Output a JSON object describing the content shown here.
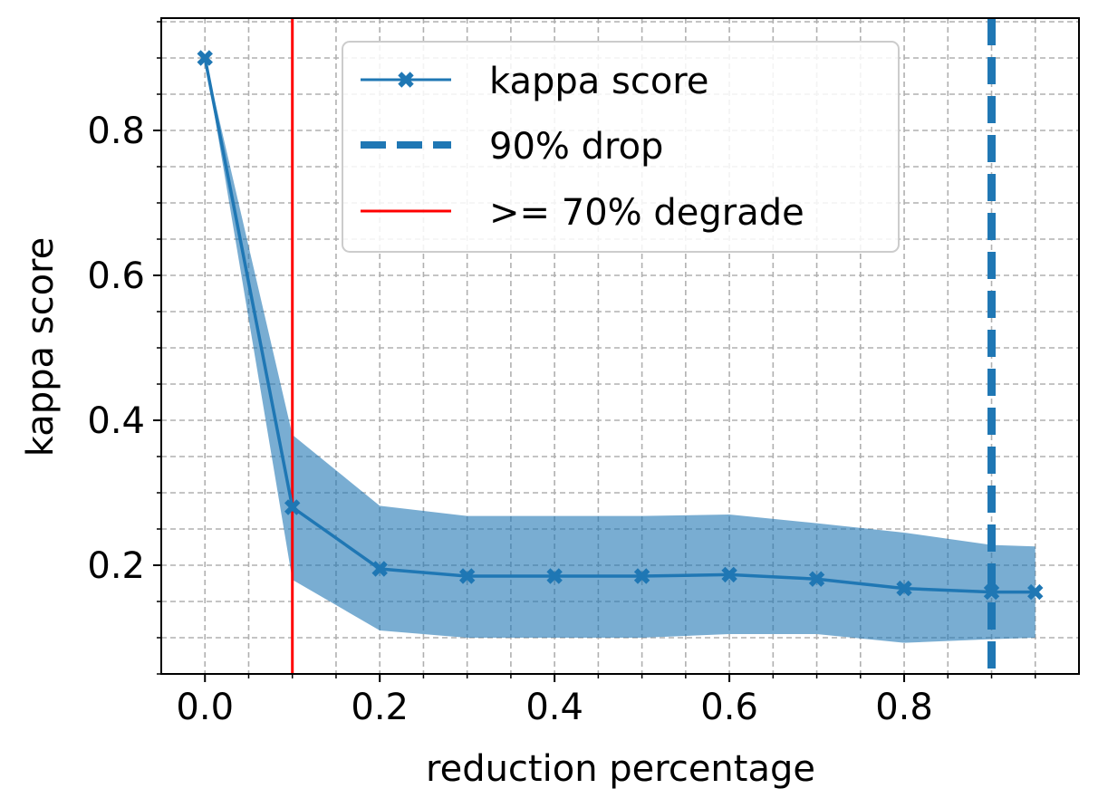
{
  "chart_data": {
    "type": "line",
    "title": "",
    "xlabel": "reduction percentage",
    "ylabel": "kappa score",
    "xlim": [
      -0.05,
      1.0
    ],
    "ylim": [
      0.05,
      0.955
    ],
    "grid": true,
    "grid_style": "dashed",
    "legend_position": "top-center",
    "x_ticks": [
      0.0,
      0.2,
      0.4,
      0.6,
      0.8
    ],
    "x_tick_labels": [
      "0.0",
      "0.2",
      "0.4",
      "0.6",
      "0.8"
    ],
    "x_minor_ticks": [
      0.05,
      0.1,
      0.15,
      0.25,
      0.3,
      0.35,
      0.45,
      0.5,
      0.55,
      0.65,
      0.7,
      0.75,
      0.85,
      0.9,
      0.95
    ],
    "y_ticks": [
      0.2,
      0.4,
      0.6,
      0.8
    ],
    "y_tick_labels": [
      "0.2",
      "0.4",
      "0.6",
      "0.8"
    ],
    "y_minor_ticks": [
      0.05,
      0.1,
      0.15,
      0.25,
      0.3,
      0.35,
      0.45,
      0.5,
      0.55,
      0.65,
      0.7,
      0.75,
      0.85,
      0.9,
      0.95
    ],
    "series": [
      {
        "name": "kappa score",
        "color": "#1f77b4",
        "marker": "X",
        "x": [
          0.0,
          0.1,
          0.2,
          0.3,
          0.4,
          0.5,
          0.6,
          0.7,
          0.8,
          0.9,
          0.95
        ],
        "y": [
          0.9,
          0.28,
          0.195,
          0.185,
          0.185,
          0.185,
          0.187,
          0.181,
          0.168,
          0.163,
          0.163
        ],
        "band_lower": [
          0.9,
          0.18,
          0.11,
          0.1,
          0.1,
          0.1,
          0.105,
          0.105,
          0.093,
          0.098,
          0.1
        ],
        "band_upper": [
          0.9,
          0.38,
          0.282,
          0.268,
          0.268,
          0.268,
          0.27,
          0.258,
          0.245,
          0.228,
          0.226
        ],
        "band_color": "#1f77b4",
        "band_opacity": 0.6
      }
    ],
    "vlines": [
      {
        "name": "90% drop",
        "x": 0.9,
        "color": "#1f77b4",
        "style": "dashed"
      },
      {
        "name": ">= 70% degrade",
        "x": 0.1,
        "color": "#ff0000",
        "style": "solid"
      }
    ],
    "legend": [
      {
        "label": "kappa score",
        "kind": "line-marker",
        "color": "#1f77b4"
      },
      {
        "label": "90% drop",
        "kind": "dashed",
        "color": "#1f77b4"
      },
      {
        "label": ">= 70% degrade",
        "kind": "solid",
        "color": "#ff0000"
      }
    ]
  }
}
